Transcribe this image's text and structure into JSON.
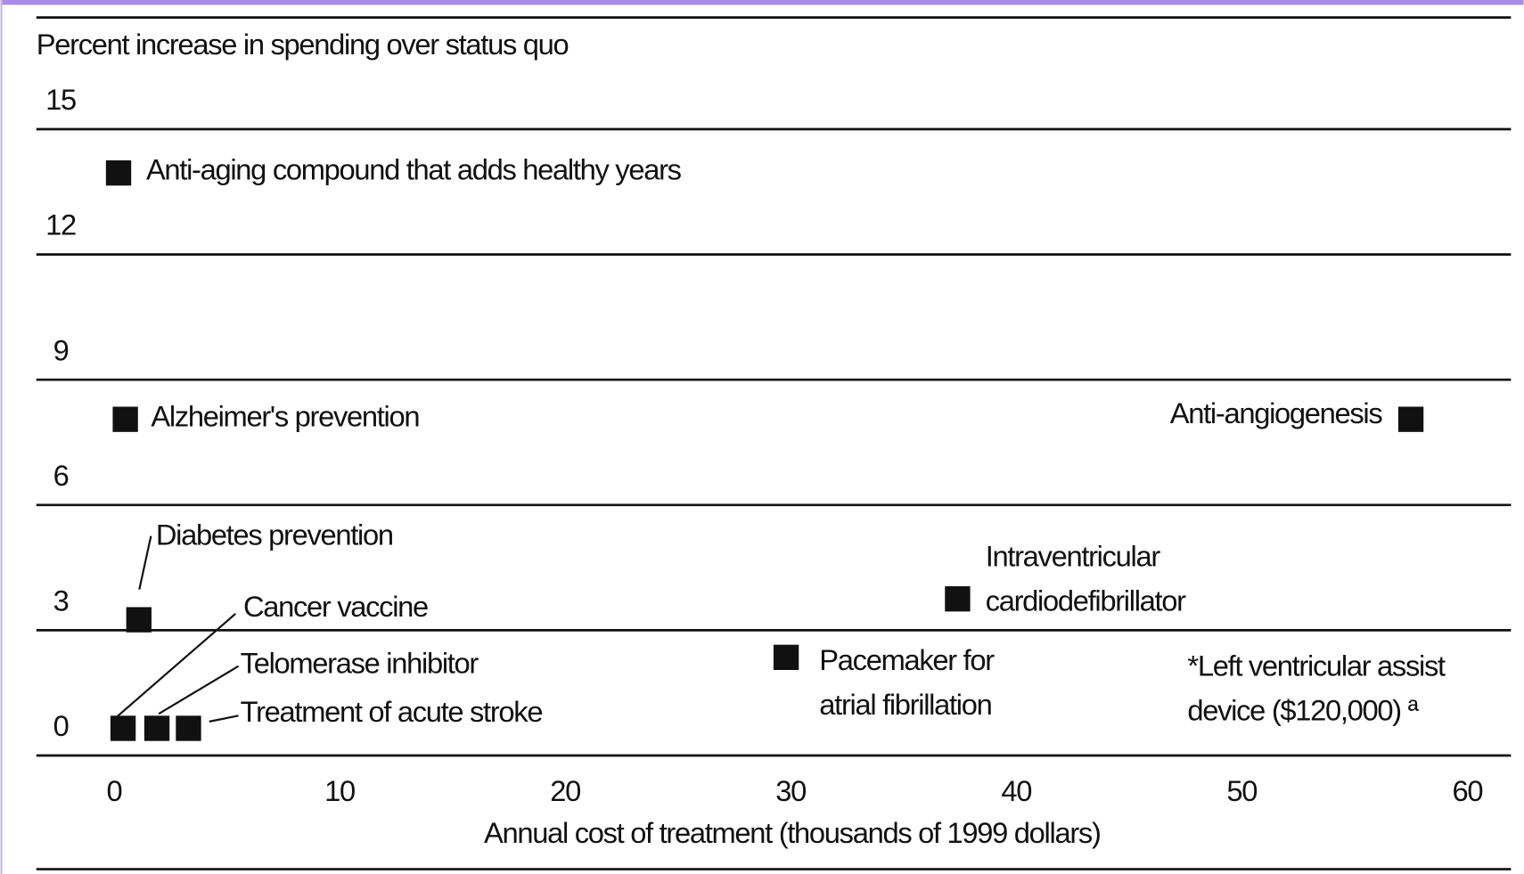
{
  "chart_data": {
    "type": "scatter",
    "y_label": "Percent increase in spending over status quo",
    "x_label": "Annual cost of treatment (thousands of 1999 dollars)",
    "xlim": [
      0,
      60
    ],
    "xticks": [
      0,
      10,
      20,
      30,
      40,
      50,
      60
    ],
    "ylim": [
      0,
      15
    ],
    "yticks": [
      0,
      3,
      6,
      9,
      12,
      15
    ],
    "grid": true,
    "color": "#111111",
    "points": [
      {
        "label": [
          "Anti-aging compound that adds healthy years"
        ],
        "x": 0.2,
        "y": 13.3
      },
      {
        "label": [
          "Alzheimer's prevention"
        ],
        "x": 0.5,
        "y": 7.4
      },
      {
        "label": [
          "Anti-angiogenesis"
        ],
        "x": 57.5,
        "y": 7.4
      },
      {
        "label": [
          "Diabetes prevention"
        ],
        "x": 1.1,
        "y": 2.6
      },
      {
        "label": [
          "Cancer vaccine"
        ],
        "x": 0.4,
        "y": 0
      },
      {
        "label": [
          "Telomerase inhibitor"
        ],
        "x": 1.9,
        "y": 0
      },
      {
        "label": [
          "Treatment of acute stroke"
        ],
        "x": 3.3,
        "y": 0
      },
      {
        "label": [
          "Intraventricular",
          "cardiodefibrillator"
        ],
        "x": 37.4,
        "y": 3.1
      },
      {
        "label": [
          "Pacemaker for",
          "atrial fibrillation"
        ],
        "x": 29.8,
        "y": 1.7
      }
    ],
    "annotation": [
      "*Left ventricular assist",
      "device ($120,000) ª"
    ]
  }
}
